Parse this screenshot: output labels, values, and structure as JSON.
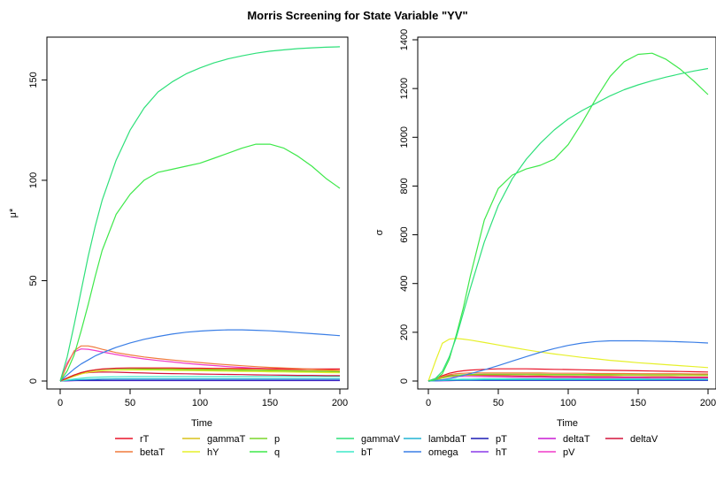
{
  "title": "Morris Screening for State Variable \"YV\"",
  "colors": {
    "rT": "#e8142a",
    "betaT": "#f07a3c",
    "gammaT": "#d9c21a",
    "hY": "#e6f02a",
    "p": "#7ad62a",
    "q": "#3ee84a",
    "gammaV": "#2ee07a",
    "bT": "#3ee8c8",
    "lambdaT": "#22b4d4",
    "omega": "#3a7ee6",
    "pT": "#1a1ab4",
    "hT": "#8a3ae8",
    "deltaT": "#c81ad4",
    "pV": "#f03ac8",
    "deltaV": "#d4143c"
  },
  "chart_data": [
    {
      "type": "line",
      "title": "",
      "xlabel": "Time",
      "ylabel": "μ*",
      "xlim": [
        0,
        200
      ],
      "ylim": [
        0,
        170
      ],
      "xticks": [
        0,
        50,
        100,
        150,
        200
      ],
      "yticks": [
        0,
        50,
        100,
        150
      ],
      "x": [
        0,
        5,
        10,
        15,
        20,
        25,
        30,
        40,
        50,
        60,
        70,
        80,
        90,
        100,
        110,
        120,
        130,
        140,
        150,
        160,
        170,
        180,
        190,
        200
      ],
      "series": [
        {
          "name": "gammaV",
          "values": [
            0,
            12,
            28,
            45,
            62,
            77,
            90,
            110,
            125,
            136,
            144,
            149,
            153,
            156,
            158.5,
            160.5,
            162,
            163.3,
            164.3,
            165,
            165.6,
            166,
            166.3,
            166.5
          ]
        },
        {
          "name": "q",
          "values": [
            0,
            5,
            13,
            25,
            38,
            52,
            65,
            83,
            93,
            100,
            104,
            105.5,
            107,
            108.5,
            111,
            113.5,
            116,
            118,
            118,
            116,
            112,
            107,
            101,
            96
          ]
        },
        {
          "name": "omega",
          "values": [
            0,
            3,
            6,
            8.5,
            10.5,
            12.5,
            14,
            16.8,
            19,
            20.8,
            22.2,
            23.4,
            24.3,
            24.9,
            25.3,
            25.5,
            25.5,
            25.3,
            25,
            24.6,
            24.1,
            23.6,
            23.1,
            22.6
          ]
        },
        {
          "name": "betaT",
          "values": [
            0,
            8,
            15,
            17.5,
            17.5,
            16.8,
            15.8,
            14.2,
            13,
            12,
            11.2,
            10.5,
            9.8,
            9.2,
            8.6,
            8.1,
            7.6,
            7.2,
            6.8,
            6.5,
            6.2,
            5.9,
            5.6,
            5.3
          ]
        },
        {
          "name": "pV",
          "values": [
            0,
            9,
            14.5,
            16,
            15.8,
            15.2,
            14.5,
            13.2,
            12,
            11,
            10.2,
            9.5,
            8.8,
            8.2,
            7.7,
            7.2,
            6.8,
            6.4,
            6.1,
            5.8,
            5.5,
            5.3,
            5.1,
            4.9
          ]
        },
        {
          "name": "p",
          "values": [
            0,
            1.5,
            3,
            4.2,
            5,
            5.5,
            5.8,
            6.1,
            6.1,
            6,
            5.9,
            5.8,
            5.7,
            5.6,
            5.5,
            5.4,
            5.3,
            5.2,
            5.1,
            5,
            4.9,
            4.8,
            4.7,
            4.6
          ]
        },
        {
          "name": "rT",
          "values": [
            0,
            1.5,
            3,
            4.2,
            5,
            5.6,
            6,
            6.4,
            6.5,
            6.5,
            6.5,
            6.5,
            6.4,
            6.4,
            6.3,
            6.3,
            6.2,
            6.2,
            6.1,
            6.1,
            6,
            6,
            6,
            6
          ]
        },
        {
          "name": "gammaT",
          "values": [
            0,
            1.2,
            2.5,
            3.8,
            4.8,
            5.4,
            5.9,
            6.3,
            6.4,
            6.4,
            6.3,
            6.2,
            6.1,
            6,
            5.9,
            5.8,
            5.7,
            5.6,
            5.5,
            5.4,
            5.3,
            5.2,
            5.1,
            5
          ]
        },
        {
          "name": "hY",
          "values": [
            0,
            1.2,
            2.4,
            3.5,
            4.3,
            4.8,
            5.1,
            5.4,
            5.5,
            5.5,
            5.4,
            5.3,
            5.2,
            5.1,
            5,
            4.9,
            4.8,
            4.7,
            4.6,
            4.5,
            4.4,
            4.3,
            4.2,
            4.1
          ]
        },
        {
          "name": "deltaV",
          "values": [
            0,
            1.5,
            3,
            3.8,
            4.2,
            4.4,
            4.5,
            4.4,
            4.2,
            4,
            3.8,
            3.7,
            3.6,
            3.5,
            3.4,
            3.3,
            3.2,
            3.1,
            3,
            2.9,
            2.8,
            2.8,
            2.7,
            2.7
          ]
        },
        {
          "name": "bT",
          "values": [
            0,
            0.5,
            1,
            1.4,
            1.7,
            1.9,
            2,
            2.1,
            2.2,
            2.2,
            2.2,
            2.2,
            2.2,
            2.2,
            2.2,
            2.2,
            2.2,
            2.2,
            2.2,
            2.2,
            2.2,
            2.2,
            2.2,
            2.2
          ]
        },
        {
          "name": "lambdaT",
          "values": [
            0,
            0.3,
            0.5,
            0.7,
            0.8,
            0.9,
            1,
            1.1,
            1.1,
            1.1,
            1.1,
            1.1,
            1.1,
            1.1,
            1.1,
            1.1,
            1.1,
            1.1,
            1.1,
            1.1,
            1.1,
            1.1,
            1.1,
            1.1
          ]
        },
        {
          "name": "pT",
          "values": [
            0,
            0.2,
            0.3,
            0.4,
            0.4,
            0.4,
            0.4,
            0.4,
            0.4,
            0.4,
            0.4,
            0.4,
            0.4,
            0.4,
            0.4,
            0.4,
            0.4,
            0.4,
            0.4,
            0.4,
            0.4,
            0.4,
            0.4,
            0.4
          ]
        },
        {
          "name": "hT",
          "values": [
            0,
            0.1,
            0.2,
            0.2,
            0.2,
            0.2,
            0.2,
            0.2,
            0.2,
            0.2,
            0.2,
            0.2,
            0.2,
            0.2,
            0.2,
            0.2,
            0.2,
            0.2,
            0.2,
            0.2,
            0.2,
            0.2,
            0.2,
            0.2
          ]
        },
        {
          "name": "deltaT",
          "values": [
            0,
            0.1,
            0.2,
            0.3,
            0.3,
            0.3,
            0.3,
            0.3,
            0.3,
            0.3,
            0.3,
            0.3,
            0.3,
            0.3,
            0.3,
            0.3,
            0.3,
            0.3,
            0.3,
            0.3,
            0.3,
            0.3,
            0.3,
            0.3
          ]
        }
      ]
    },
    {
      "type": "line",
      "title": "",
      "xlabel": "Time",
      "ylabel": "σ",
      "xlim": [
        0,
        200
      ],
      "ylim": [
        0,
        1400
      ],
      "xticks": [
        0,
        50,
        100,
        150,
        200
      ],
      "yticks": [
        0,
        200,
        400,
        600,
        800,
        1000,
        1200,
        1400
      ],
      "x": [
        0,
        5,
        10,
        15,
        20,
        25,
        30,
        40,
        50,
        60,
        70,
        80,
        90,
        100,
        110,
        120,
        130,
        140,
        150,
        160,
        170,
        180,
        190,
        200
      ],
      "series": [
        {
          "name": "gammaV",
          "values": [
            0,
            10,
            40,
            100,
            180,
            280,
            380,
            570,
            720,
            830,
            910,
            975,
            1030,
            1075,
            1110,
            1140,
            1170,
            1195,
            1215,
            1232,
            1247,
            1260,
            1272,
            1282
          ]
        },
        {
          "name": "q",
          "values": [
            0,
            5,
            30,
            90,
            190,
            300,
            430,
            660,
            790,
            845,
            870,
            885,
            910,
            970,
            1060,
            1160,
            1250,
            1310,
            1340,
            1345,
            1320,
            1280,
            1230,
            1175
          ]
        },
        {
          "name": "hY",
          "values": [
            0,
            80,
            155,
            172,
            175,
            172,
            168,
            158,
            148,
            138,
            128,
            119,
            111,
            104,
            97,
            91,
            85,
            80,
            75,
            71,
            67,
            63,
            59,
            55
          ]
        },
        {
          "name": "omega",
          "values": [
            0,
            2,
            5,
            10,
            16,
            23,
            30,
            46,
            63,
            82,
            100,
            118,
            133,
            146,
            156,
            162,
            165,
            165,
            165,
            164,
            163,
            161,
            159,
            156
          ]
        },
        {
          "name": "rT",
          "values": [
            0,
            10,
            22,
            32,
            38,
            42,
            45,
            48,
            50,
            50,
            50,
            49,
            48,
            47,
            46,
            45,
            44,
            43,
            42,
            41,
            40,
            39,
            38,
            37
          ]
        },
        {
          "name": "betaT",
          "values": [
            0,
            8,
            18,
            26,
            30,
            32,
            33,
            33,
            33,
            33,
            33,
            33,
            32,
            32,
            32,
            31,
            31,
            31,
            30,
            30,
            30,
            30,
            29,
            29
          ]
        },
        {
          "name": "p",
          "values": [
            0,
            6,
            14,
            20,
            24,
            26,
            27,
            28,
            28,
            28,
            28,
            28,
            27,
            27,
            27,
            27,
            27,
            26,
            26,
            26,
            26,
            26,
            26,
            25
          ]
        },
        {
          "name": "gammaT",
          "values": [
            0,
            5,
            12,
            18,
            22,
            24,
            25,
            26,
            26,
            26,
            26,
            25,
            25,
            25,
            25,
            24,
            24,
            24,
            24,
            23,
            23,
            23,
            23,
            23
          ]
        },
        {
          "name": "deltaV",
          "values": [
            0,
            8,
            17,
            22,
            24,
            24,
            24,
            23,
            22,
            21,
            20,
            20,
            19,
            19,
            18,
            18,
            18,
            17,
            17,
            17,
            17,
            16,
            16,
            16
          ]
        },
        {
          "name": "pV",
          "values": [
            0,
            6,
            14,
            18,
            19,
            19,
            19,
            18,
            17,
            16,
            15,
            15,
            14,
            14,
            14,
            13,
            13,
            13,
            13,
            12,
            12,
            12,
            12,
            12
          ]
        },
        {
          "name": "bT",
          "values": [
            0,
            2,
            4,
            6,
            7,
            8,
            8,
            9,
            9,
            9,
            9,
            9,
            9,
            9,
            9,
            9,
            9,
            9,
            9,
            9,
            9,
            9,
            9,
            9
          ]
        },
        {
          "name": "lambdaT",
          "values": [
            0,
            1,
            2,
            3,
            4,
            4,
            4,
            5,
            5,
            5,
            5,
            5,
            5,
            5,
            5,
            5,
            5,
            5,
            5,
            5,
            5,
            5,
            5,
            5
          ]
        },
        {
          "name": "pT",
          "values": [
            0,
            1,
            2,
            2,
            3,
            3,
            3,
            3,
            3,
            3,
            3,
            3,
            3,
            3,
            3,
            3,
            3,
            3,
            3,
            3,
            3,
            3,
            3,
            3
          ]
        },
        {
          "name": "hT",
          "values": [
            0,
            1,
            1,
            2,
            2,
            2,
            2,
            2,
            2,
            2,
            2,
            2,
            2,
            2,
            2,
            2,
            2,
            2,
            2,
            2,
            2,
            2,
            2,
            2
          ]
        },
        {
          "name": "deltaT",
          "values": [
            0,
            1,
            1,
            1,
            2,
            2,
            2,
            2,
            2,
            2,
            2,
            2,
            2,
            2,
            2,
            2,
            2,
            2,
            2,
            2,
            2,
            2,
            2,
            2
          ]
        }
      ]
    }
  ],
  "legend": {
    "items": [
      "rT",
      "betaT",
      "gammaT",
      "hY",
      "p",
      "q",
      "gammaV",
      "bT",
      "lambdaT",
      "omega",
      "pT",
      "hT",
      "deltaT",
      "pV",
      "deltaV"
    ]
  }
}
